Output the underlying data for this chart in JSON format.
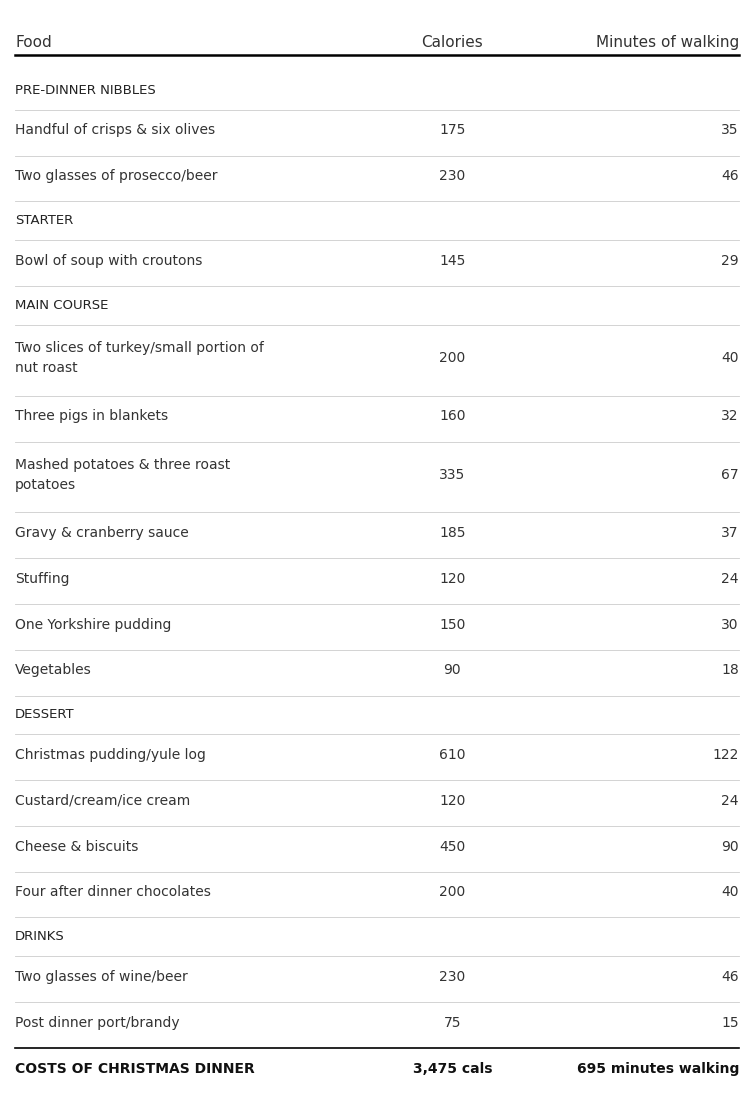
{
  "header": [
    "Food",
    "Calories",
    "Minutes of walking"
  ],
  "rows": [
    {
      "type": "section",
      "label": "PRE-DINNER NIBBLES"
    },
    {
      "type": "item",
      "food": "Handful of crisps & six olives",
      "calories": "175",
      "minutes": "35"
    },
    {
      "type": "item",
      "food": "Two glasses of prosecco/beer",
      "calories": "230",
      "minutes": "46"
    },
    {
      "type": "section",
      "label": "STARTER"
    },
    {
      "type": "item",
      "food": "Bowl of soup with croutons",
      "calories": "145",
      "minutes": "29"
    },
    {
      "type": "section",
      "label": "MAIN COURSE"
    },
    {
      "type": "item2",
      "food": "Two slices of turkey/small portion of\nnut roast",
      "calories": "200",
      "minutes": "40"
    },
    {
      "type": "item",
      "food": "Three pigs in blankets",
      "calories": "160",
      "minutes": "32"
    },
    {
      "type": "item2",
      "food": "Mashed potatoes & three roast\npotatoes",
      "calories": "335",
      "minutes": "67"
    },
    {
      "type": "item",
      "food": "Gravy & cranberry sauce",
      "calories": "185",
      "minutes": "37"
    },
    {
      "type": "item",
      "food": "Stuffing",
      "calories": "120",
      "minutes": "24"
    },
    {
      "type": "item",
      "food": "One Yorkshire pudding",
      "calories": "150",
      "minutes": "30"
    },
    {
      "type": "item",
      "food": "Vegetables",
      "calories": "90",
      "minutes": "18"
    },
    {
      "type": "section",
      "label": "DESSERT"
    },
    {
      "type": "item",
      "food": "Christmas pudding/yule log",
      "calories": "610",
      "minutes": "122"
    },
    {
      "type": "item",
      "food": "Custard/cream/ice cream",
      "calories": "120",
      "minutes": "24"
    },
    {
      "type": "item",
      "food": "Cheese & biscuits",
      "calories": "450",
      "minutes": "90"
    },
    {
      "type": "item",
      "food": "Four after dinner chocolates",
      "calories": "200",
      "minutes": "40"
    },
    {
      "type": "section",
      "label": "DRINKS"
    },
    {
      "type": "item",
      "food": "Two glasses of wine/beer",
      "calories": "230",
      "minutes": "46"
    },
    {
      "type": "item",
      "food": "Post dinner port/brandy",
      "calories": "75",
      "minutes": "15"
    },
    {
      "type": "total",
      "food": "COSTS OF CHRISTMAS DINNER",
      "calories": "3,475 cals",
      "minutes": "695 minutes walking"
    }
  ],
  "bg_color": "#ffffff",
  "header_line_color": "#000000",
  "divider_color": "#cccccc",
  "section_color": "#222222",
  "item_color": "#333333",
  "total_color": "#111111",
  "header_color": "#333333",
  "font_size_header": 11,
  "font_size_section": 9.5,
  "font_size_item": 10,
  "font_size_total": 10
}
